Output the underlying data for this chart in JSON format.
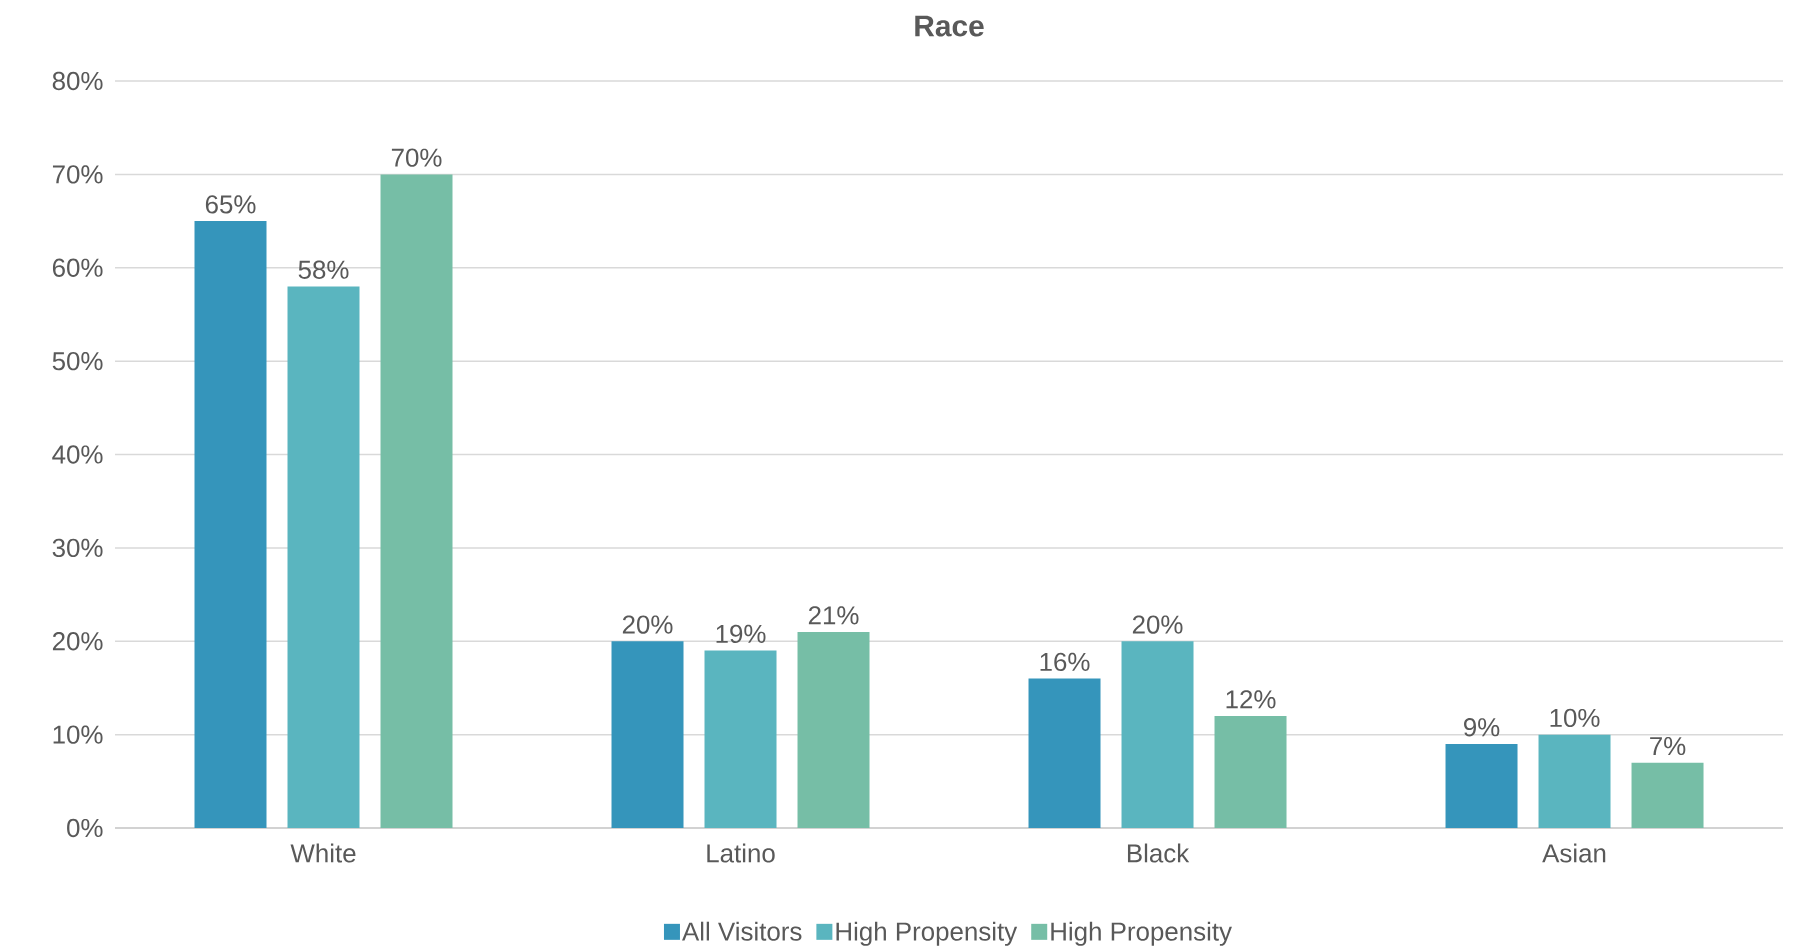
{
  "chart_data": {
    "type": "bar",
    "title": "Race",
    "categories": [
      "White",
      "Latino",
      "Black",
      "Asian"
    ],
    "series": [
      {
        "name": "All  Visitors",
        "color": "#3595bb",
        "values": [
          65,
          20,
          16,
          9
        ],
        "value_labels": [
          "65%",
          "20%",
          "16%",
          "9%"
        ]
      },
      {
        "name": "High Propensity",
        "color": "#5ab5bf",
        "values": [
          58,
          19,
          20,
          10
        ],
        "value_labels": [
          "58%",
          "19%",
          "20%",
          "10%"
        ]
      },
      {
        "name": "High Propensity",
        "color": "#76bea6",
        "values": [
          70,
          21,
          12,
          7
        ],
        "value_labels": [
          "70%",
          "21%",
          "12%",
          "7%"
        ]
      }
    ],
    "ylim": [
      0,
      80
    ],
    "yticks": [
      {
        "value": 0,
        "label": "0%"
      },
      {
        "value": 10,
        "label": "10%"
      },
      {
        "value": 20,
        "label": "20%"
      },
      {
        "value": 30,
        "label": "30%"
      },
      {
        "value": 40,
        "label": "40%"
      },
      {
        "value": 50,
        "label": "50%"
      },
      {
        "value": 60,
        "label": "60%"
      },
      {
        "value": 70,
        "label": "70%"
      },
      {
        "value": 80,
        "label": "80%"
      }
    ],
    "grid": "y",
    "legend": "bottom"
  }
}
